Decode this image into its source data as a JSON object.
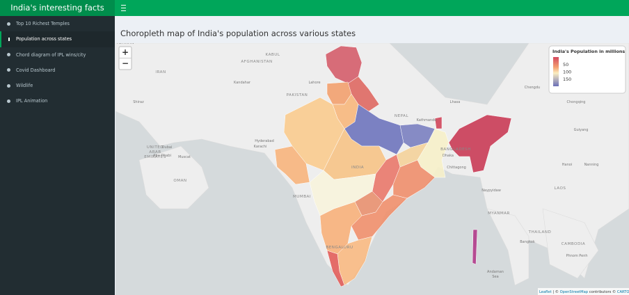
{
  "header": {
    "title": "India's interesting facts"
  },
  "sidebar": {
    "items": [
      {
        "label": "Top 10 Richest Temples"
      },
      {
        "label": "Population across states"
      },
      {
        "label": "Chord diagram of IPL wins/city"
      },
      {
        "label": "Covid Dashboard"
      },
      {
        "label": "Wildlife"
      },
      {
        "label": "IPL Animation"
      }
    ]
  },
  "map": {
    "title": "Choropleth map of India's population across various states",
    "zoom_in": "+",
    "zoom_out": "−",
    "legend": {
      "title": "India's Population in millions",
      "ticks": [
        50,
        100,
        150
      ]
    },
    "places": [
      "TEHRAN",
      "IRAN",
      "KABUL",
      "AFGHANISTAN",
      "Kandahar",
      "PAKISTAN",
      "Lahore",
      "Shiraz",
      "Hyderabad",
      "Karachi",
      "Dubai",
      "Abu Dhabi",
      "UNITED",
      "ARAB",
      "EMIRATES",
      "Muscat",
      "OMAN",
      "NEPAL",
      "Kathmandu",
      "Lhasa",
      "BANGLADESH",
      "Dhaka",
      "Chittagong",
      "INDIA",
      "MUMBAI",
      "BENGALURU",
      "MYANMAR",
      "Naypyidaw",
      "THAILAND",
      "Bangkok",
      "CAMBODIA",
      "LAOS",
      "Hanoi",
      "Chongqing",
      "Chengdu",
      "Guiyang",
      "Nanning",
      "Andaman",
      "Sea",
      "Phnom Penh"
    ],
    "attribution": [
      "Leaflet",
      " | © ",
      "OpenStreetMap",
      " contributors © ",
      "CARTO"
    ]
  }
}
